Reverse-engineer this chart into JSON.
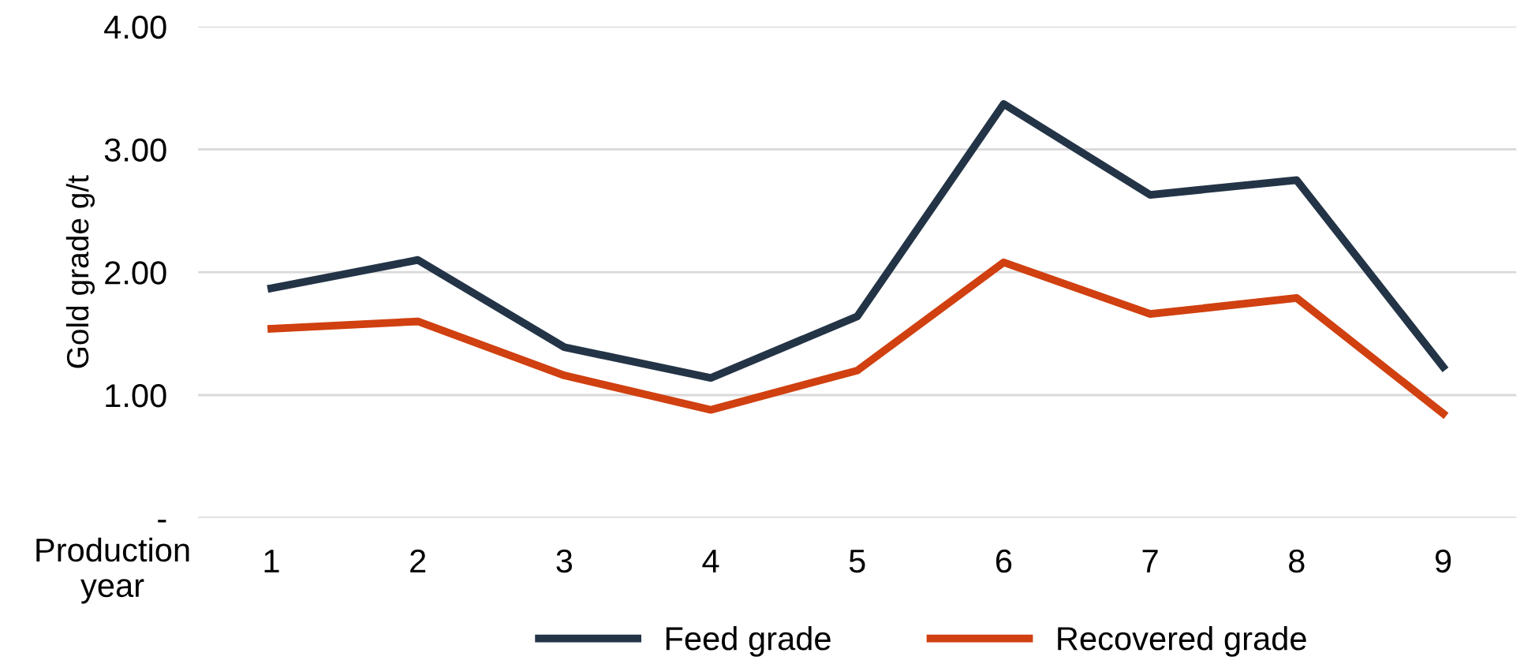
{
  "chart_data": {
    "type": "line",
    "ylabel": "Gold grade g/t",
    "xlabel": "Production year",
    "categories": [
      "1",
      "2",
      "3",
      "4",
      "5",
      "6",
      "7",
      "8",
      "9"
    ],
    "series": [
      {
        "name": "Feed grade",
        "color": "#243447",
        "values": [
          1.87,
          2.1,
          1.39,
          1.14,
          1.64,
          3.37,
          2.63,
          2.75,
          1.23
        ]
      },
      {
        "name": "Recovered grade",
        "color": "#d04010",
        "values": [
          1.54,
          1.6,
          1.16,
          0.88,
          1.2,
          2.08,
          1.66,
          1.79,
          0.85
        ]
      }
    ],
    "ylim": [
      0,
      4
    ],
    "yticks": [
      {
        "value": 0,
        "label": "-"
      },
      {
        "value": 1,
        "label": "1.00"
      },
      {
        "value": 2,
        "label": "2.00"
      },
      {
        "value": 3,
        "label": "3.00"
      },
      {
        "value": 4,
        "label": "4.00"
      }
    ],
    "grid": "y",
    "legend": "bottom",
    "marker": "none",
    "line_style": "solid"
  }
}
